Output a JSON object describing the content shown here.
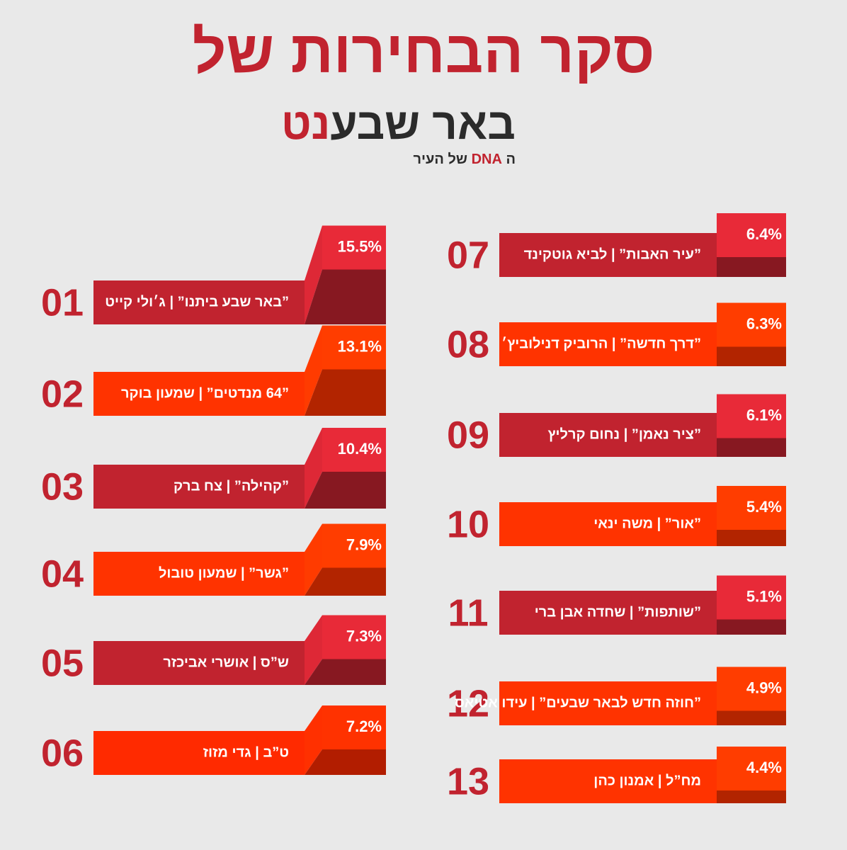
{
  "chart_data": {
    "type": "bar",
    "title": "סקר הבחירות של",
    "logo": {
      "name": "באר שבע",
      "accent": "נט",
      "tagline_prefix": "ה",
      "tagline_accent": "DNA",
      "tagline_suffix": "של העיר"
    },
    "ranks": [
      "01",
      "02",
      "03",
      "04",
      "05",
      "06",
      "07",
      "08",
      "09",
      "10",
      "11",
      "12",
      "13"
    ],
    "categories": [
      "”באר שבע ביתנו” | ג׳ולי קייט",
      "”64 מנדטים” | שמעון בוקר",
      "”קהילה” | צח ברק",
      "”גשר” | שמעון טובול",
      "ש”ס | אושרי אביכזר",
      "ט”ב | גדי מזוז",
      "”עיר האבות” | לביא גוטקינד",
      "”דרך חדשה” | הרוביק דנילוביץ׳",
      "”ציר נאמן” | נחום קרליץ",
      "”אור” | משה ינאי",
      "”שותפות” | שחדה אבן ברי",
      "”חוזה חדש לבאר שבעים” | עידו אטיאס",
      "מח”ל | אמנון כהן"
    ],
    "values": [
      15.5,
      13.1,
      10.4,
      7.9,
      7.3,
      7.2,
      6.4,
      6.3,
      6.1,
      5.4,
      5.1,
      4.9,
      4.4
    ],
    "value_labels": [
      "15.5%",
      "13.1%",
      "10.4%",
      "7.9%",
      "7.3%",
      "7.2%",
      "6.4%",
      "6.3%",
      "6.1%",
      "5.4%",
      "5.1%",
      "4.9%",
      "4.4%"
    ],
    "colors": [
      "#c1232f",
      "#ff3300",
      "#c1232f",
      "#ff3300",
      "#c1232f",
      "#ff2a00",
      "#c1232f",
      "#ff3300",
      "#c1232f",
      "#ff3300",
      "#c1232f",
      "#ff3300",
      "#ff3300"
    ]
  }
}
